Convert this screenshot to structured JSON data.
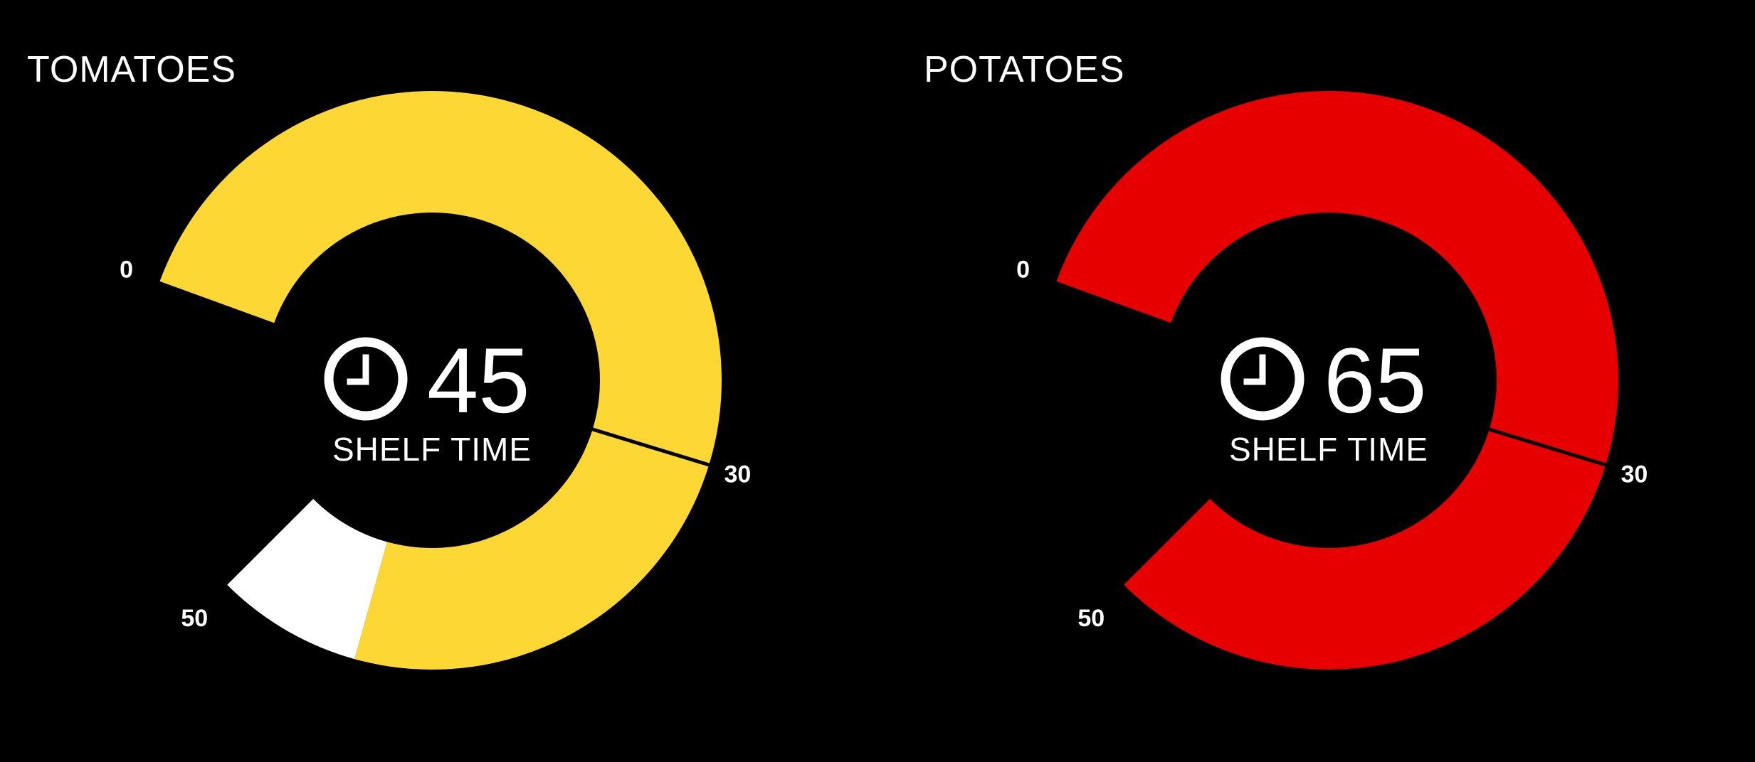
{
  "chart_data": [
    {
      "type": "gauge",
      "title": "TOMATOES",
      "value": 45,
      "center_label": "SHELF TIME",
      "icon": "clock-icon",
      "scale_min": 0,
      "scale_max": 50,
      "marker": 30,
      "tick_labels": [
        "0",
        "30",
        "50"
      ],
      "segments": [
        {
          "from": 0,
          "to": 45,
          "color": "#FDD835"
        },
        {
          "from": 45,
          "to": 50,
          "color": "#FFFFFF"
        }
      ]
    },
    {
      "type": "gauge",
      "title": "POTATOES",
      "value": 65,
      "center_label": "SHELF TIME",
      "icon": "clock-icon",
      "scale_min": 0,
      "scale_max": 50,
      "marker": 30,
      "tick_labels": [
        "0",
        "30",
        "50"
      ],
      "segments": [
        {
          "from": 0,
          "to": 50,
          "color": "#E60000"
        }
      ]
    }
  ]
}
